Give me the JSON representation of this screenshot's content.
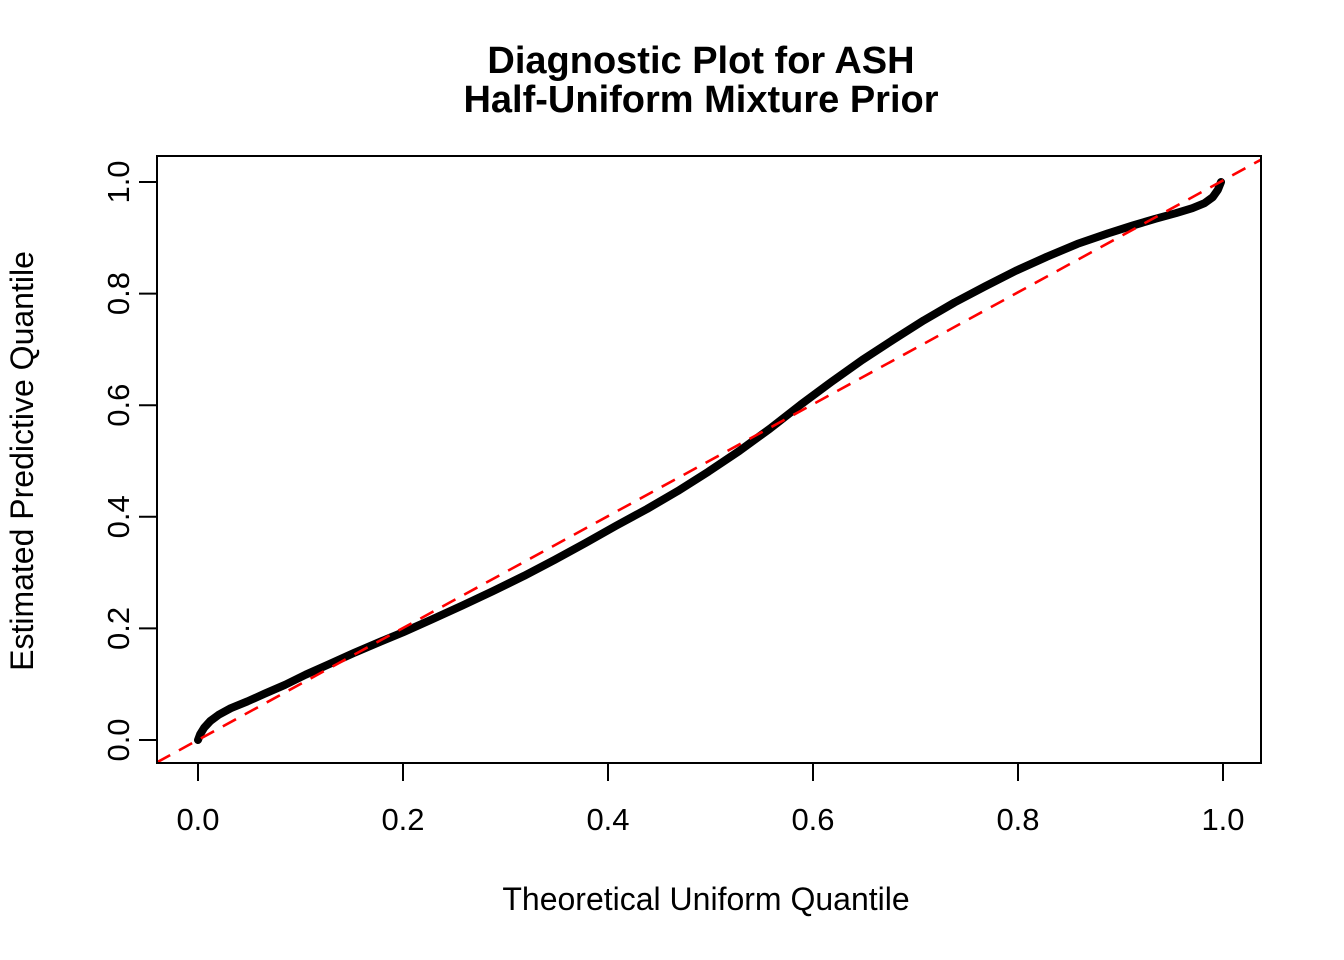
{
  "figure": {
    "title_line1": "Diagnostic Plot for ASH",
    "title_line2": "Half-Uniform Mixture Prior",
    "xlabel": "Theoretical Uniform Quantile",
    "ylabel": "Estimated Predictive Quantile"
  },
  "colors": {
    "background": "#FFFFFF",
    "text": "#000000",
    "curve": "#000000",
    "reference_line": "#FF0000",
    "axis": "#000000"
  },
  "chart_data": {
    "type": "line",
    "title": "Diagnostic Plot for ASH\nHalf-Uniform Mixture Prior",
    "xlabel": "Theoretical Uniform Quantile",
    "ylabel": "Estimated Predictive Quantile",
    "xlim": [
      -0.04,
      1.04
    ],
    "ylim": [
      -0.04,
      1.04
    ],
    "grid": false,
    "legend": "none",
    "x_ticks": [
      0.0,
      0.2,
      0.4,
      0.6,
      0.8,
      1.0
    ],
    "y_ticks": [
      0.0,
      0.2,
      0.4,
      0.6,
      0.8,
      1.0
    ],
    "x_tick_labels": [
      "0.0",
      "0.2",
      "0.4",
      "0.6",
      "0.8",
      "1.0"
    ],
    "y_tick_labels": [
      "0.0",
      "0.2",
      "0.4",
      "0.6",
      "0.8",
      "1.0"
    ],
    "series": [
      {
        "name": "estimated-predictive-quantile-curve",
        "style": "solid-thick",
        "color": "#000000",
        "points": [
          [
            0.0,
            0.0
          ],
          [
            0.002,
            0.01
          ],
          [
            0.006,
            0.022
          ],
          [
            0.012,
            0.034
          ],
          [
            0.02,
            0.045
          ],
          [
            0.032,
            0.057
          ],
          [
            0.048,
            0.069
          ],
          [
            0.065,
            0.083
          ],
          [
            0.085,
            0.099
          ],
          [
            0.105,
            0.117
          ],
          [
            0.128,
            0.136
          ],
          [
            0.152,
            0.156
          ],
          [
            0.175,
            0.174
          ],
          [
            0.2,
            0.193
          ],
          [
            0.228,
            0.216
          ],
          [
            0.258,
            0.241
          ],
          [
            0.288,
            0.267
          ],
          [
            0.318,
            0.294
          ],
          [
            0.348,
            0.323
          ],
          [
            0.378,
            0.353
          ],
          [
            0.408,
            0.384
          ],
          [
            0.438,
            0.414
          ],
          [
            0.468,
            0.446
          ],
          [
            0.498,
            0.481
          ],
          [
            0.528,
            0.518
          ],
          [
            0.558,
            0.558
          ],
          [
            0.588,
            0.601
          ],
          [
            0.618,
            0.642
          ],
          [
            0.648,
            0.681
          ],
          [
            0.678,
            0.717
          ],
          [
            0.708,
            0.752
          ],
          [
            0.738,
            0.784
          ],
          [
            0.768,
            0.813
          ],
          [
            0.798,
            0.841
          ],
          [
            0.828,
            0.866
          ],
          [
            0.858,
            0.889
          ],
          [
            0.888,
            0.908
          ],
          [
            0.912,
            0.922
          ],
          [
            0.934,
            0.934
          ],
          [
            0.954,
            0.944
          ],
          [
            0.97,
            0.953
          ],
          [
            0.982,
            0.962
          ],
          [
            0.99,
            0.973
          ],
          [
            0.995,
            0.986
          ],
          [
            0.998,
            1.0
          ]
        ]
      },
      {
        "name": "identity-reference-line",
        "style": "dashed",
        "color": "#FF0000",
        "points": [
          [
            -0.04,
            -0.04
          ],
          [
            1.04,
            1.04
          ]
        ]
      }
    ]
  }
}
